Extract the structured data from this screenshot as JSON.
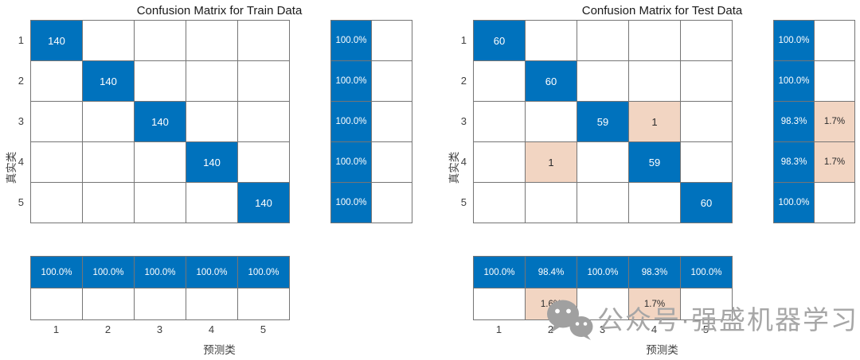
{
  "page": {
    "background": "#ffffff"
  },
  "colors": {
    "diagonal_fill": "#0072BD",
    "offdiagonal_fill": "#F2D5C2",
    "empty_fill": "#ffffff",
    "grid_line": "#757575",
    "text_on_blue": "#ffffff",
    "text_dark": "#262626",
    "watermark_gray": "#a6a6a6"
  },
  "watermark": {
    "icon": "wechat-icon",
    "text": "公众号·强盛机器学习"
  },
  "chart_data": [
    {
      "type": "heatmap",
      "subtype": "confusion-matrix",
      "title": "Confusion Matrix for Train Data",
      "xlabel": "预测类",
      "ylabel": "真实类",
      "row_tick_labels": [
        "1",
        "2",
        "3",
        "4",
        "5"
      ],
      "col_tick_labels": [
        "1",
        "2",
        "3",
        "4",
        "5"
      ],
      "matrix": [
        [
          140,
          0,
          0,
          0,
          0
        ],
        [
          0,
          140,
          0,
          0,
          0
        ],
        [
          0,
          0,
          140,
          0,
          0
        ],
        [
          0,
          0,
          0,
          140,
          0
        ],
        [
          0,
          0,
          0,
          0,
          140
        ]
      ],
      "row_summary": {
        "recall": [
          "100.0%",
          "100.0%",
          "100.0%",
          "100.0%",
          "100.0%"
        ],
        "miss_rate": [
          "",
          "",
          "",
          "",
          ""
        ]
      },
      "col_summary": {
        "precision": [
          "100.0%",
          "100.0%",
          "100.0%",
          "100.0%",
          "100.0%"
        ],
        "false_discovery_rate": [
          "",
          "",
          "",
          "",
          ""
        ]
      }
    },
    {
      "type": "heatmap",
      "subtype": "confusion-matrix",
      "title": "Confusion Matrix for Test Data",
      "xlabel": "预测类",
      "ylabel": "真实类",
      "row_tick_labels": [
        "1",
        "2",
        "3",
        "4",
        "5"
      ],
      "col_tick_labels": [
        "1",
        "2",
        "3",
        "4",
        "5"
      ],
      "matrix": [
        [
          60,
          0,
          0,
          0,
          0
        ],
        [
          0,
          60,
          0,
          0,
          0
        ],
        [
          0,
          0,
          59,
          1,
          0
        ],
        [
          0,
          1,
          0,
          59,
          0
        ],
        [
          0,
          0,
          0,
          0,
          60
        ]
      ],
      "row_summary": {
        "recall": [
          "100.0%",
          "100.0%",
          "98.3%",
          "98.3%",
          "100.0%"
        ],
        "miss_rate": [
          "",
          "",
          "1.7%",
          "1.7%",
          ""
        ]
      },
      "col_summary": {
        "precision": [
          "100.0%",
          "98.4%",
          "100.0%",
          "98.3%",
          "100.0%"
        ],
        "false_discovery_rate": [
          "",
          "1.6%",
          "",
          "1.7%",
          ""
        ]
      }
    }
  ]
}
